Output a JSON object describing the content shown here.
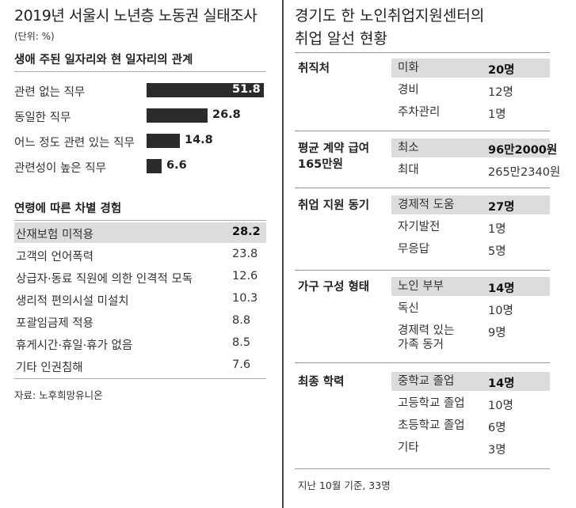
{
  "left": {
    "title": "2019년 서울시 노년층 노동권 실태조사",
    "unit": "(단위: %)",
    "section1": "생애 주된 일자리와 현 일자리의 관계",
    "section2": "연령에 따른 차별 경험",
    "source": "자료: 노후희망유니온"
  },
  "right": {
    "title_line1": "경기도 한 노인취업지원센터의",
    "title_line2": "취업 알선 현황",
    "groups": [
      {
        "label": "취직처",
        "items": [
          {
            "label": "미화",
            "value": "20명",
            "highlight": true
          },
          {
            "label": "경비",
            "value": "12명",
            "highlight": false
          },
          {
            "label": "주차관리",
            "value": "1명",
            "highlight": false
          }
        ]
      },
      {
        "label": "평균 계약 급여 165만원",
        "items": [
          {
            "label": "최소",
            "value": "96만2000원",
            "highlight": true
          },
          {
            "label": "최대",
            "value": "265만2340원",
            "highlight": false
          }
        ]
      },
      {
        "label": "취업 지원 동기",
        "items": [
          {
            "label": "경제적 도움",
            "value": "27명",
            "highlight": true
          },
          {
            "label": "자기발전",
            "value": "1명",
            "highlight": false
          },
          {
            "label": "무응답",
            "value": "5명",
            "highlight": false
          }
        ]
      },
      {
        "label": "가구 구성 형태",
        "items": [
          {
            "label": "노인 부부",
            "value": "14명",
            "highlight": true
          },
          {
            "label": "독신",
            "value": "10명",
            "highlight": false
          },
          {
            "label": "경제력 있는 가족 동거",
            "value": "9명",
            "highlight": false
          }
        ]
      },
      {
        "label": "최종 학력",
        "items": [
          {
            "label": "중학교 졸업",
            "value": "14명",
            "highlight": true
          },
          {
            "label": "고등학교 졸업",
            "value": "10명",
            "highlight": false
          },
          {
            "label": "초등학교 졸업",
            "value": "6명",
            "highlight": false
          },
          {
            "label": "기타",
            "value": "3명",
            "highlight": false
          }
        ]
      }
    ],
    "footnote": "지난 10월 기준, 33명"
  },
  "chart_data": [
    {
      "type": "bar",
      "title": "생애 주된 일자리와 현 일자리의 관계",
      "categories": [
        "관련 없는 직무",
        "동일한 직무",
        "어느 정도 관련 있는 직무",
        "관련성이 높은 직무"
      ],
      "values": [
        51.8,
        26.8,
        14.8,
        6.6
      ],
      "labels": [
        "51.8",
        "26.8",
        "14.8",
        "6.6"
      ],
      "bar_color": "#2b2b2b"
    },
    {
      "type": "table",
      "title": "연령에 따른 차별 경험",
      "categories": [
        "산재보험 미적용",
        "고객의 언어폭력",
        "상급자·동료 직원에 의한 인격적 모독",
        "생리적 편의시설 미설치",
        "포괄임금제 적용",
        "휴게시간·휴일·휴가 없음",
        "기타 인권침해"
      ],
      "values": [
        28.2,
        23.8,
        12.6,
        10.3,
        8.8,
        8.5,
        7.6
      ],
      "labels": [
        "28.2",
        "23.8",
        "12.6",
        "10.3",
        "8.8",
        "8.5",
        "7.6"
      ],
      "highlight_color": "#dcdcdc"
    }
  ]
}
